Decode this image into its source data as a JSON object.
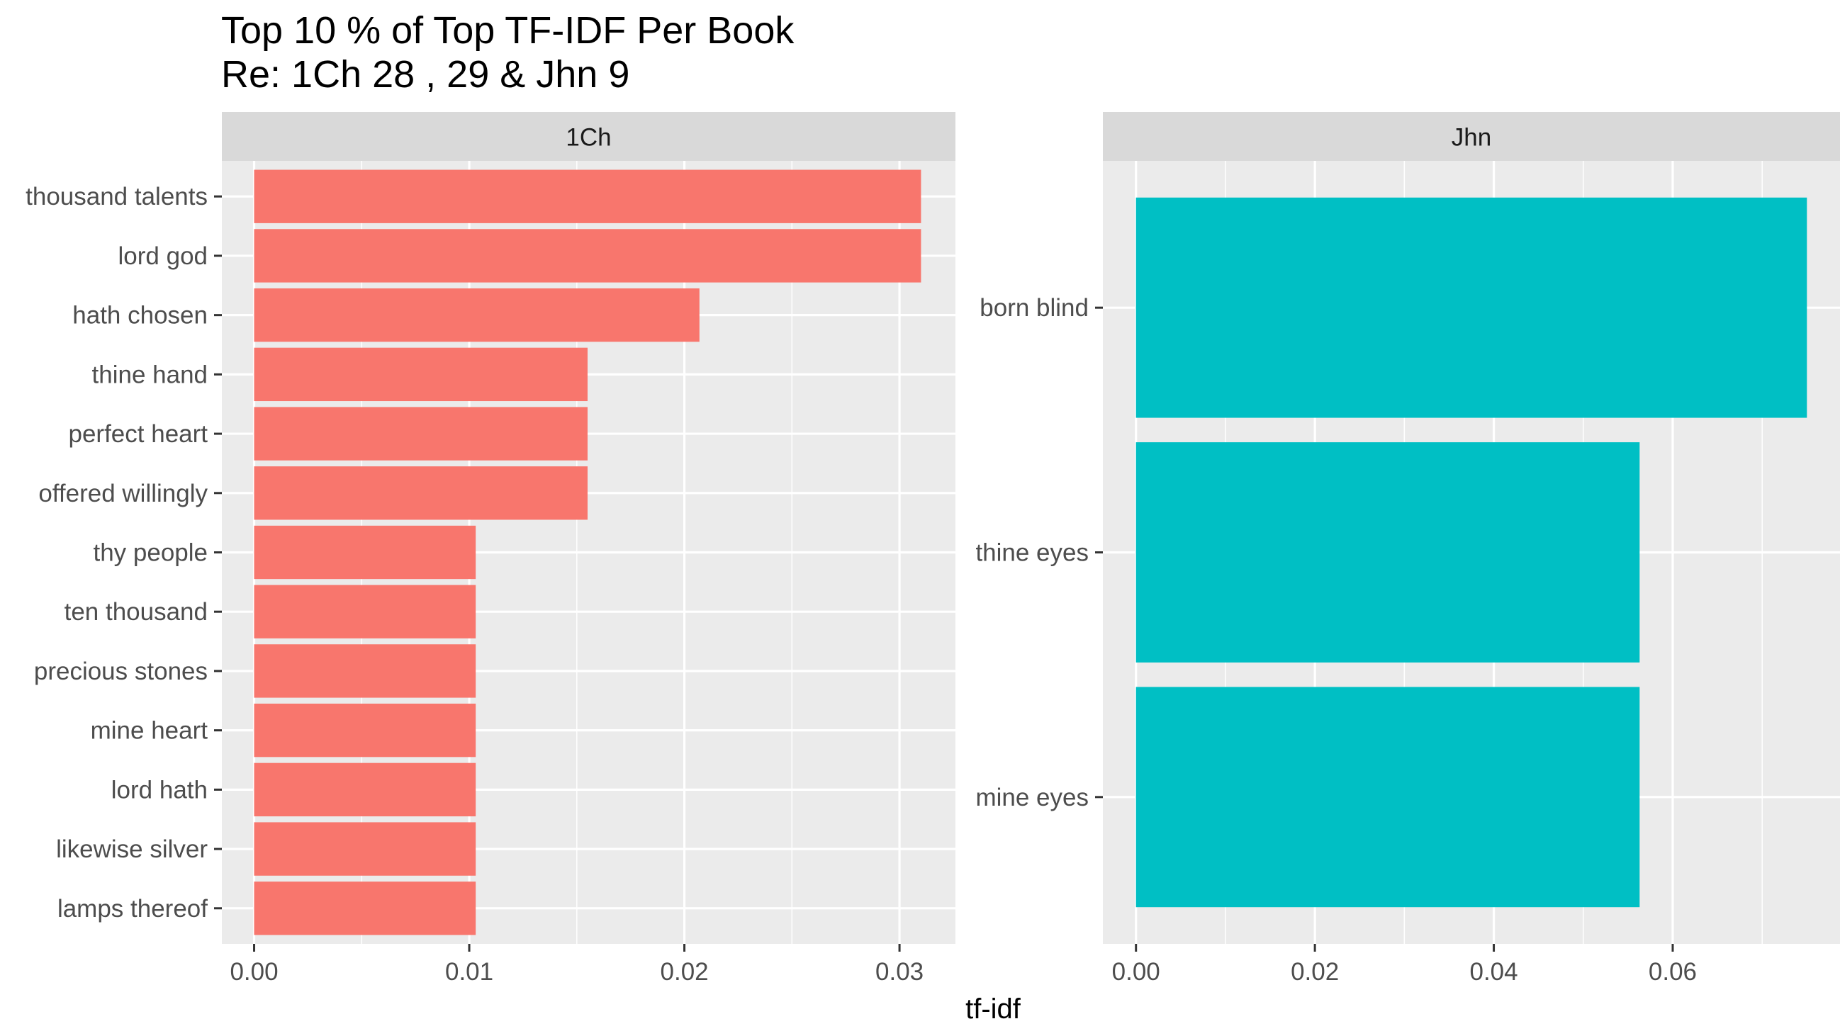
{
  "title": "Top 10 % of Top TF-IDF Per Book",
  "subtitle": "Re: 1Ch 28 , 29 & Jhn 9",
  "chart_data": [
    {
      "type": "bar",
      "orientation": "horizontal",
      "facet": "1Ch",
      "color": "#F8766D",
      "categories": [
        "thousand talents",
        "lord god",
        "hath chosen",
        "thine hand",
        "perfect heart",
        "offered willingly",
        "thy people",
        "ten thousand",
        "precious stones",
        "mine heart",
        "lord hath",
        "likewise silver",
        "lamps thereof"
      ],
      "values": [
        0.031,
        0.031,
        0.0207,
        0.0155,
        0.0155,
        0.0155,
        0.0103,
        0.0103,
        0.0103,
        0.0103,
        0.0103,
        0.0103,
        0.0103
      ],
      "xlim": [
        -0.0015,
        0.0326
      ],
      "ticks": [
        0.0,
        0.01,
        0.02,
        0.03
      ],
      "tick_labels": [
        "0.00",
        "0.01",
        "0.02",
        "0.03"
      ]
    },
    {
      "type": "bar",
      "orientation": "horizontal",
      "facet": "Jhn",
      "color": "#00BFC4",
      "categories": [
        "born blind",
        "thine eyes",
        "mine eyes"
      ],
      "values": [
        0.075,
        0.0563,
        0.0563
      ],
      "xlim": [
        -0.0037,
        0.0787
      ],
      "ticks": [
        0.0,
        0.02,
        0.04,
        0.06
      ],
      "tick_labels": [
        "0.00",
        "0.02",
        "0.04",
        "0.06"
      ]
    }
  ],
  "xlabel": "tf-idf",
  "grid": true
}
